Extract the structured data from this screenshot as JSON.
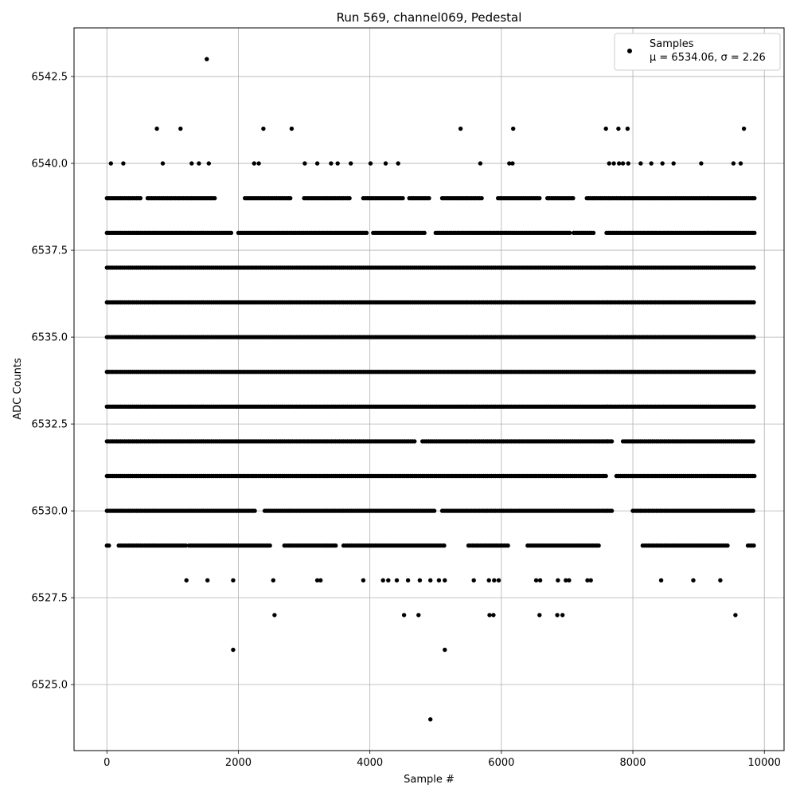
{
  "chart_data": {
    "type": "scatter",
    "title": "Run 569, channel069, Pedestal",
    "xlabel": "Sample #",
    "ylabel": "ADC Counts",
    "xlim": [
      -500,
      10300
    ],
    "ylim": [
      6523.1,
      6543.9
    ],
    "xticks": [
      0,
      2000,
      4000,
      6000,
      8000,
      10000
    ],
    "yticks": [
      6525.0,
      6527.5,
      6530.0,
      6532.5,
      6535.0,
      6537.5,
      6540.0,
      6542.5
    ],
    "xtick_labels": [
      "0",
      "2000",
      "4000",
      "6000",
      "8000",
      "10000"
    ],
    "ytick_labels": [
      "6525.0",
      "6527.5",
      "6530.0",
      "6532.5",
      "6535.0",
      "6537.5",
      "6540.0",
      "6542.5"
    ],
    "grid": true,
    "legend_position": "top-right",
    "series": [
      {
        "name": "Samples",
        "color": "#000000",
        "marker": "dot",
        "annotation": "μ = 6534.06, σ = 2.26",
        "points": [
          [
            1520,
            6543
          ],
          [
            760,
            6541
          ],
          [
            1120,
            6541
          ],
          [
            2380,
            6541
          ],
          [
            2810,
            6541
          ],
          [
            5380,
            6541
          ],
          [
            6180,
            6541
          ],
          [
            7590,
            6541
          ],
          [
            7780,
            6541
          ],
          [
            7920,
            6541
          ],
          [
            9690,
            6541
          ],
          [
            60,
            6540
          ],
          [
            250,
            6540
          ],
          [
            850,
            6540
          ],
          [
            1290,
            6540
          ],
          [
            1400,
            6540
          ],
          [
            1550,
            6540
          ],
          [
            2240,
            6540
          ],
          [
            2310,
            6540
          ],
          [
            3010,
            6540
          ],
          [
            3200,
            6540
          ],
          [
            3410,
            6540
          ],
          [
            3510,
            6540
          ],
          [
            3710,
            6540
          ],
          [
            4010,
            6540
          ],
          [
            4240,
            6540
          ],
          [
            4430,
            6540
          ],
          [
            5680,
            6540
          ],
          [
            6120,
            6540
          ],
          [
            6170,
            6540
          ],
          [
            7640,
            6540
          ],
          [
            7710,
            6540
          ],
          [
            7790,
            6540
          ],
          [
            7850,
            6540
          ],
          [
            7930,
            6540
          ],
          [
            8120,
            6540
          ],
          [
            8280,
            6540
          ],
          [
            8450,
            6540
          ],
          [
            8620,
            6540
          ],
          [
            9040,
            6540
          ],
          [
            9530,
            6540
          ],
          [
            9640,
            6540
          ],
          [
            1920,
            6526
          ],
          [
            5140,
            6526
          ],
          [
            4920,
            6524
          ],
          [
            2550,
            6527
          ],
          [
            4520,
            6527
          ],
          [
            4740,
            6527
          ],
          [
            5820,
            6527
          ],
          [
            5880,
            6527
          ],
          [
            6580,
            6527
          ],
          [
            6850,
            6527
          ],
          [
            6930,
            6527
          ],
          [
            9560,
            6527
          ],
          [
            1210,
            6528
          ],
          [
            1530,
            6528
          ],
          [
            1920,
            6528
          ],
          [
            2530,
            6528
          ],
          [
            3200,
            6528
          ],
          [
            3250,
            6528
          ],
          [
            3900,
            6528
          ],
          [
            4200,
            6528
          ],
          [
            4280,
            6528
          ],
          [
            4410,
            6528
          ],
          [
            4580,
            6528
          ],
          [
            4760,
            6528
          ],
          [
            4920,
            6528
          ],
          [
            5050,
            6528
          ],
          [
            5140,
            6528
          ],
          [
            5580,
            6528
          ],
          [
            5810,
            6528
          ],
          [
            5890,
            6528
          ],
          [
            5960,
            6528
          ],
          [
            6530,
            6528
          ],
          [
            6590,
            6528
          ],
          [
            6860,
            6528
          ],
          [
            6980,
            6528
          ],
          [
            7030,
            6528
          ],
          [
            7310,
            6528
          ],
          [
            7360,
            6528
          ],
          [
            8430,
            6528
          ],
          [
            8920,
            6528
          ],
          [
            9330,
            6528
          ]
        ],
        "level_ranges": [
          {
            "y": 6539,
            "segments": [
              [
                0,
                520
              ],
              [
                620,
                1650
              ],
              [
                2100,
                2800
              ],
              [
                3000,
                3700
              ],
              [
                3900,
                4500
              ],
              [
                4600,
                4900
              ],
              [
                5100,
                5700
              ],
              [
                5950,
                6600
              ],
              [
                6700,
                7100
              ],
              [
                7300,
                9850
              ]
            ]
          },
          {
            "y": 6538,
            "segments": [
              [
                0,
                1900
              ],
              [
                2000,
                3950
              ],
              [
                4050,
                4850
              ],
              [
                5000,
                7050
              ],
              [
                7100,
                7400
              ],
              [
                7600,
                9850
              ]
            ]
          },
          {
            "y": 6537,
            "segments": [
              [
                0,
                9850
              ]
            ]
          },
          {
            "y": 6536,
            "segments": [
              [
                0,
                9850
              ]
            ]
          },
          {
            "y": 6535,
            "segments": [
              [
                0,
                9850
              ]
            ]
          },
          {
            "y": 6534,
            "segments": [
              [
                0,
                9850
              ]
            ]
          },
          {
            "y": 6533,
            "segments": [
              [
                0,
                9850
              ]
            ]
          },
          {
            "y": 6532,
            "segments": [
              [
                0,
                4700
              ],
              [
                4800,
                7700
              ],
              [
                7850,
                9850
              ]
            ]
          },
          {
            "y": 6531,
            "segments": [
              [
                0,
                7600
              ],
              [
                7750,
                9850
              ]
            ]
          },
          {
            "y": 6530,
            "segments": [
              [
                0,
                2250
              ],
              [
                2400,
                5000
              ],
              [
                5100,
                7700
              ],
              [
                8000,
                9850
              ]
            ]
          },
          {
            "y": 6529,
            "segments": [
              [
                0,
                40
              ],
              [
                180,
                1200
              ],
              [
                1250,
                2500
              ],
              [
                2700,
                3500
              ],
              [
                3600,
                5150
              ],
              [
                5500,
                6100
              ],
              [
                6400,
                7500
              ],
              [
                8150,
                9450
              ],
              [
                9750,
                9850
              ]
            ]
          }
        ]
      }
    ]
  }
}
